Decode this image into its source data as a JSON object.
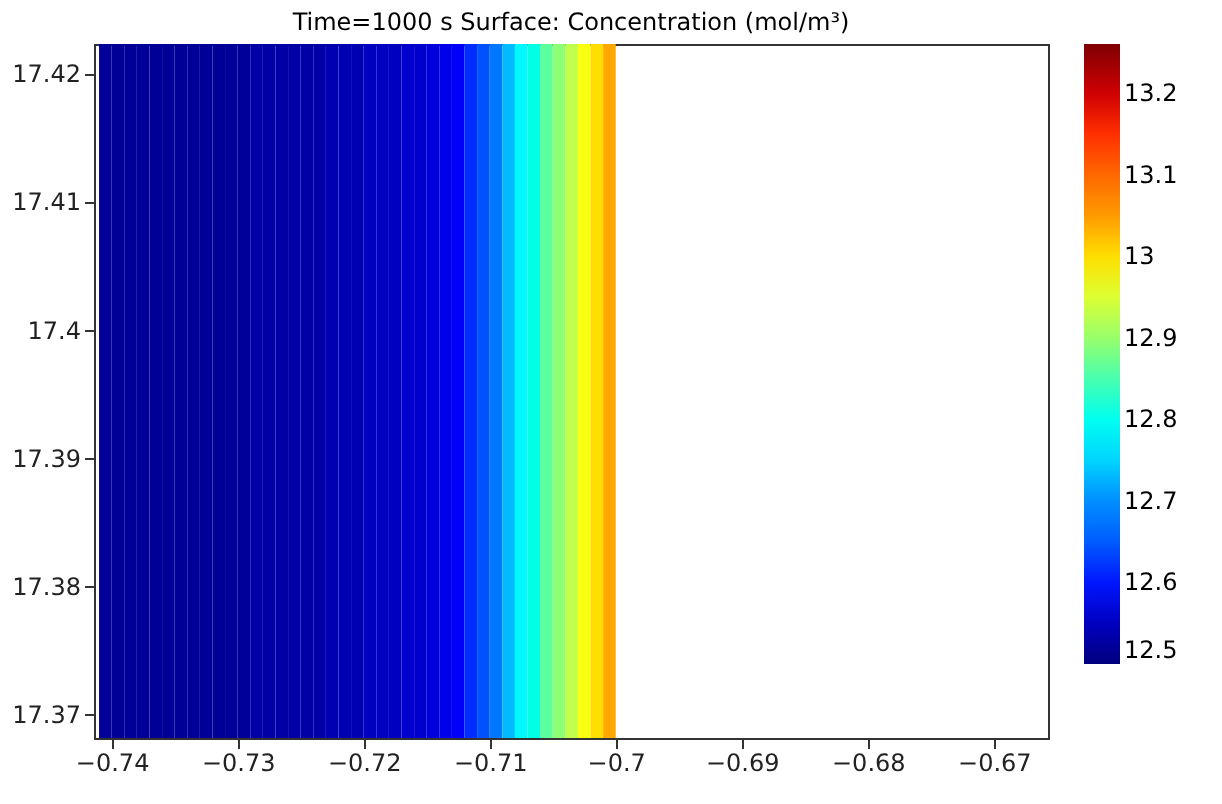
{
  "chart_data": {
    "type": "heatmap",
    "title": "Time=1000 s   Surface: Concentration (mol/m³)",
    "x": [
      -0.7405,
      -0.7395,
      -0.7385,
      -0.7375,
      -0.7365,
      -0.7355,
      -0.7345,
      -0.7335,
      -0.7325,
      -0.7315,
      -0.7305,
      -0.7295,
      -0.7285,
      -0.7275,
      -0.7265,
      -0.7255,
      -0.7245,
      -0.7235,
      -0.7225,
      -0.7215,
      -0.7205,
      -0.7195,
      -0.7185,
      -0.7175,
      -0.7165,
      -0.7155,
      -0.7145,
      -0.7135,
      -0.7125,
      -0.7115,
      -0.7105,
      -0.7095,
      -0.7085,
      -0.7075,
      -0.7065,
      -0.7055,
      -0.7045,
      -0.7035,
      -0.7025,
      -0.7015,
      -0.7005
    ],
    "cells": [
      [
        12.52,
        12.52,
        12.52,
        12.52,
        12.52,
        12.52,
        12.52,
        12.52,
        12.52,
        12.52,
        12.52,
        12.52,
        12.53,
        12.53,
        12.53,
        12.53,
        12.53,
        12.53,
        12.54,
        12.54,
        12.54,
        12.55,
        12.55,
        12.55,
        12.56,
        12.56,
        12.57,
        12.58,
        12.59,
        12.61,
        12.64,
        12.68,
        12.73,
        12.78,
        12.81,
        12.86,
        12.89,
        12.93,
        12.97,
        13.0,
        13.04
      ]
    ],
    "xlim": [
      -0.7414,
      -0.6657
    ],
    "ylim": [
      17.3681,
      17.4223
    ],
    "xticks": [
      -0.74,
      -0.73,
      -0.72,
      -0.71,
      -0.7,
      -0.69,
      -0.68,
      -0.67
    ],
    "yticks": [
      17.37,
      17.38,
      17.39,
      17.4,
      17.41,
      17.42
    ],
    "clim": [
      12.5,
      13.26
    ],
    "cticks": [
      12.5,
      12.6,
      12.7,
      12.8,
      12.9,
      13,
      13.1,
      13.2
    ],
    "grid": false
  }
}
